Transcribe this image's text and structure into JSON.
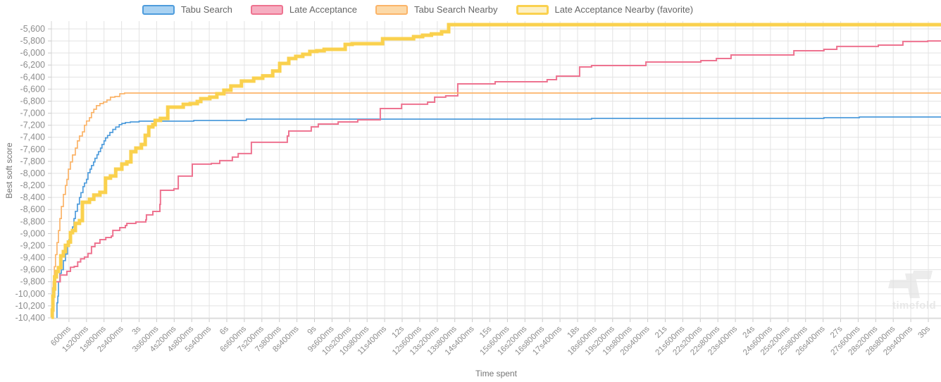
{
  "watermark": {
    "text": "timefold"
  },
  "chart_data": {
    "type": "line",
    "title": "",
    "xlabel": "Time spent",
    "ylabel": "Best soft score",
    "legend_position": "top-center",
    "grid": true,
    "step_interpolation": "step-after",
    "xlim_seconds": [
      0,
      30.45
    ],
    "ylim": [
      -10400,
      -5500
    ],
    "x_tick_interval_ms": 600,
    "x_tick_labels": [
      "600ms",
      "1s200ms",
      "1s800ms",
      "2s400ms",
      "3s",
      "3s600ms",
      "4s200ms",
      "4s800ms",
      "5s400ms",
      "6s",
      "6s600ms",
      "7s200ms",
      "7s800ms",
      "8s400ms",
      "9s",
      "9s600ms",
      "10s200ms",
      "10s800ms",
      "11s400ms",
      "12s",
      "12s600ms",
      "13s200ms",
      "13s800ms",
      "14s400ms",
      "15s",
      "15s600ms",
      "16s200ms",
      "16s800ms",
      "17s400ms",
      "18s",
      "18s600ms",
      "19s200ms",
      "19s800ms",
      "20s400ms",
      "21s",
      "21s600ms",
      "22s200ms",
      "22s800ms",
      "23s400ms",
      "24s",
      "24s600ms",
      "25s200ms",
      "25s800ms",
      "26s400ms",
      "27s",
      "27s600ms",
      "28s200ms",
      "28s800ms",
      "29s400ms",
      "30s"
    ],
    "y_tick_labels": [
      "-5,600",
      "-5,800",
      "-6,000",
      "-6,200",
      "-6,400",
      "-6,600",
      "-6,800",
      "-7,000",
      "-7,200",
      "-7,400",
      "-7,600",
      "-7,800",
      "-8,000",
      "-8,200",
      "-8,400",
      "-8,600",
      "-8,800",
      "-9,000",
      "-9,200",
      "-9,400",
      "-9,600",
      "-9,800",
      "-10,000",
      "-10,200",
      "-10,400"
    ],
    "y_tick_start": -5600,
    "y_tick_step": -200,
    "series": [
      {
        "name": "Tabu Search",
        "color": "#4e9cdc",
        "legend_fill": "#a9d2f2",
        "line_width": 1.7,
        "final_value": -7063,
        "points": [
          [
            0.17,
            -10390
          ],
          [
            0.19,
            -10150
          ],
          [
            0.22,
            -10040
          ],
          [
            0.24,
            -9800
          ],
          [
            0.29,
            -9660
          ],
          [
            0.34,
            -9600
          ],
          [
            0.41,
            -9450
          ],
          [
            0.48,
            -9340
          ],
          [
            0.55,
            -9160
          ],
          [
            0.6,
            -9100
          ],
          [
            0.65,
            -8980
          ],
          [
            0.72,
            -8890
          ],
          [
            0.77,
            -8750
          ],
          [
            0.82,
            -8630
          ],
          [
            0.89,
            -8510
          ],
          [
            0.96,
            -8400
          ],
          [
            1.01,
            -8320
          ],
          [
            1.08,
            -8220
          ],
          [
            1.13,
            -8160
          ],
          [
            1.2,
            -8100
          ],
          [
            1.25,
            -7990
          ],
          [
            1.32,
            -7930
          ],
          [
            1.37,
            -7870
          ],
          [
            1.44,
            -7810
          ],
          [
            1.49,
            -7750
          ],
          [
            1.56,
            -7690
          ],
          [
            1.61,
            -7640
          ],
          [
            1.68,
            -7580
          ],
          [
            1.73,
            -7520
          ],
          [
            1.8,
            -7460
          ],
          [
            1.85,
            -7410
          ],
          [
            1.92,
            -7370
          ],
          [
            2.0,
            -7320
          ],
          [
            2.1,
            -7270
          ],
          [
            2.2,
            -7230
          ],
          [
            2.32,
            -7190
          ],
          [
            2.41,
            -7170
          ],
          [
            2.53,
            -7155
          ],
          [
            2.7,
            -7145
          ],
          [
            3.0,
            -7133
          ],
          [
            4.87,
            -7121
          ],
          [
            6.67,
            -7098
          ],
          [
            18.48,
            -7087
          ],
          [
            26.43,
            -7075
          ],
          [
            27.64,
            -7063
          ]
        ]
      },
      {
        "name": "Late Acceptance",
        "color": "#ee7390",
        "legend_fill": "#f6aec1",
        "line_width": 2,
        "final_value": -5800,
        "points": [
          [
            0.02,
            -10390
          ],
          [
            0.05,
            -10150
          ],
          [
            0.08,
            -9920
          ],
          [
            0.12,
            -9800
          ],
          [
            0.3,
            -9690
          ],
          [
            0.53,
            -9627
          ],
          [
            0.65,
            -9560
          ],
          [
            0.78,
            -9545
          ],
          [
            0.9,
            -9470
          ],
          [
            1.0,
            -9420
          ],
          [
            1.13,
            -9390
          ],
          [
            1.25,
            -9330
          ],
          [
            1.37,
            -9218
          ],
          [
            1.49,
            -9159
          ],
          [
            1.66,
            -9100
          ],
          [
            1.86,
            -9065
          ],
          [
            2.05,
            -9041
          ],
          [
            2.1,
            -8947
          ],
          [
            2.34,
            -8901
          ],
          [
            2.53,
            -8866
          ],
          [
            2.58,
            -8831
          ],
          [
            2.89,
            -8807
          ],
          [
            3.23,
            -8772
          ],
          [
            3.25,
            -8690
          ],
          [
            3.47,
            -8632
          ],
          [
            3.71,
            -8515
          ],
          [
            3.73,
            -8281
          ],
          [
            4.19,
            -8257
          ],
          [
            4.34,
            -8046
          ],
          [
            4.82,
            -7847
          ],
          [
            5.47,
            -7835
          ],
          [
            5.76,
            -7788
          ],
          [
            6.19,
            -7730
          ],
          [
            6.39,
            -7671
          ],
          [
            6.84,
            -7484
          ],
          [
            8.07,
            -7379
          ],
          [
            8.12,
            -7297
          ],
          [
            8.89,
            -7227
          ],
          [
            9.13,
            -7180
          ],
          [
            9.81,
            -7145
          ],
          [
            10.48,
            -7110
          ],
          [
            11.25,
            -6923
          ],
          [
            11.98,
            -6852
          ],
          [
            12.87,
            -6817
          ],
          [
            13.11,
            -6735
          ],
          [
            13.49,
            -6712
          ],
          [
            13.9,
            -6513
          ],
          [
            15.18,
            -6478
          ],
          [
            16.96,
            -6443
          ],
          [
            17.28,
            -6384
          ],
          [
            18.07,
            -6232
          ],
          [
            18.48,
            -6209
          ],
          [
            20.34,
            -6150
          ],
          [
            22.22,
            -6127
          ],
          [
            22.75,
            -6092
          ],
          [
            23.25,
            -6033
          ],
          [
            25.4,
            -5963
          ],
          [
            26.43,
            -5940
          ],
          [
            26.87,
            -5892
          ],
          [
            28.29,
            -5869
          ],
          [
            29.13,
            -5810
          ],
          [
            29.98,
            -5800
          ]
        ]
      },
      {
        "name": "Tabu Search Nearby",
        "color": "#fbb469",
        "legend_fill": "#fcd9a8",
        "line_width": 1.7,
        "final_value": -6665,
        "points": [
          [
            0.0,
            -10390
          ],
          [
            0.03,
            -10050
          ],
          [
            0.06,
            -9800
          ],
          [
            0.1,
            -9550
          ],
          [
            0.14,
            -9350
          ],
          [
            0.19,
            -9150
          ],
          [
            0.24,
            -8950
          ],
          [
            0.29,
            -8750
          ],
          [
            0.34,
            -8550
          ],
          [
            0.41,
            -8350
          ],
          [
            0.48,
            -8200
          ],
          [
            0.53,
            -8100
          ],
          [
            0.58,
            -7930
          ],
          [
            0.65,
            -7810
          ],
          [
            0.72,
            -7695
          ],
          [
            0.82,
            -7580
          ],
          [
            0.89,
            -7460
          ],
          [
            0.96,
            -7380
          ],
          [
            1.06,
            -7310
          ],
          [
            1.13,
            -7200
          ],
          [
            1.2,
            -7130
          ],
          [
            1.3,
            -7075
          ],
          [
            1.37,
            -6990
          ],
          [
            1.45,
            -6935
          ],
          [
            1.54,
            -6875
          ],
          [
            1.66,
            -6840
          ],
          [
            1.78,
            -6815
          ],
          [
            1.9,
            -6780
          ],
          [
            2.02,
            -6735
          ],
          [
            2.17,
            -6723
          ],
          [
            2.34,
            -6677
          ],
          [
            2.5,
            -6665
          ]
        ]
      },
      {
        "name": "Late Acceptance Nearby (favorite)",
        "color": "#fad14e",
        "legend_fill": "#fcf0c5",
        "line_width": 5,
        "final_value": -5530,
        "points": [
          [
            0.0,
            -10390
          ],
          [
            0.03,
            -10270
          ],
          [
            0.05,
            -10040
          ],
          [
            0.08,
            -9920
          ],
          [
            0.11,
            -9720
          ],
          [
            0.17,
            -9630
          ],
          [
            0.24,
            -9565
          ],
          [
            0.32,
            -9370
          ],
          [
            0.41,
            -9300
          ],
          [
            0.48,
            -9195
          ],
          [
            0.58,
            -9140
          ],
          [
            0.65,
            -8985
          ],
          [
            0.72,
            -8950
          ],
          [
            0.82,
            -8830
          ],
          [
            0.96,
            -8785
          ],
          [
            1.06,
            -8480
          ],
          [
            1.3,
            -8430
          ],
          [
            1.45,
            -8360
          ],
          [
            1.66,
            -8315
          ],
          [
            1.85,
            -8080
          ],
          [
            2.02,
            -8045
          ],
          [
            2.2,
            -7930
          ],
          [
            2.41,
            -7845
          ],
          [
            2.58,
            -7810
          ],
          [
            2.72,
            -7640
          ],
          [
            2.89,
            -7580
          ],
          [
            3.08,
            -7520
          ],
          [
            3.21,
            -7368
          ],
          [
            3.33,
            -7227
          ],
          [
            3.47,
            -7191
          ],
          [
            3.55,
            -7121
          ],
          [
            3.73,
            -7087
          ],
          [
            3.98,
            -6900
          ],
          [
            4.51,
            -6853
          ],
          [
            4.75,
            -6841
          ],
          [
            4.99,
            -6806
          ],
          [
            5.11,
            -6759
          ],
          [
            5.42,
            -6735
          ],
          [
            5.66,
            -6677
          ],
          [
            5.9,
            -6618
          ],
          [
            6.14,
            -6548
          ],
          [
            6.5,
            -6466
          ],
          [
            6.92,
            -6420
          ],
          [
            7.23,
            -6380
          ],
          [
            7.57,
            -6300
          ],
          [
            7.81,
            -6174
          ],
          [
            8.12,
            -6092
          ],
          [
            8.36,
            -6057
          ],
          [
            8.6,
            -6021
          ],
          [
            8.84,
            -5975
          ],
          [
            9.08,
            -5963
          ],
          [
            9.33,
            -5940
          ],
          [
            10.05,
            -5857
          ],
          [
            10.29,
            -5846
          ],
          [
            11.33,
            -5764
          ],
          [
            12.39,
            -5729
          ],
          [
            12.7,
            -5705
          ],
          [
            13.0,
            -5683
          ],
          [
            13.35,
            -5647
          ],
          [
            13.59,
            -5530
          ]
        ]
      }
    ]
  }
}
